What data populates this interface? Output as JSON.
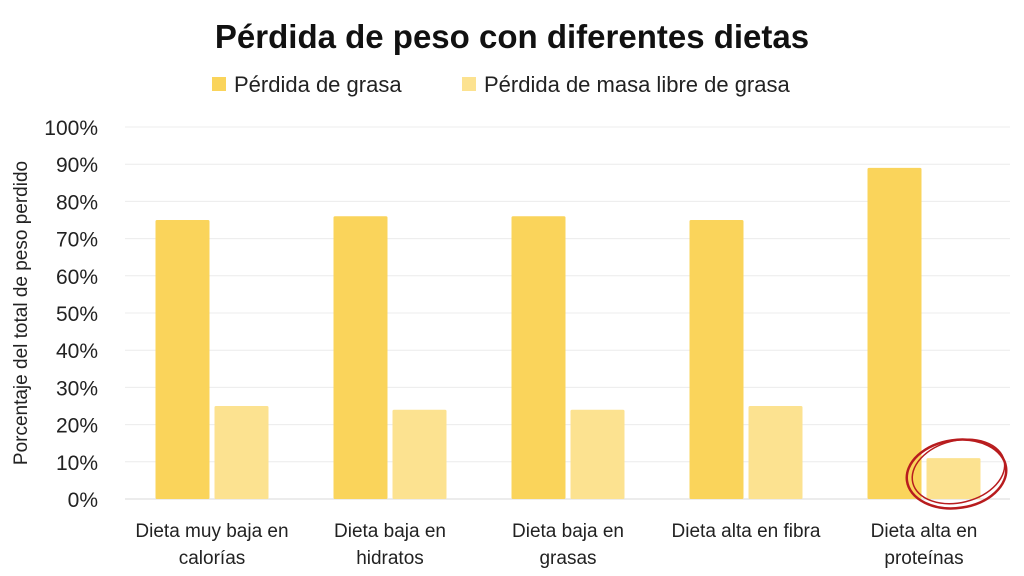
{
  "chart_data": {
    "type": "bar",
    "title": "Pérdida de peso con diferentes dietas",
    "xlabel": "",
    "ylabel": "Porcentaje del total de peso perdido",
    "ylim": [
      0,
      100
    ],
    "yticks": [
      "0%",
      "10%",
      "20%",
      "30%",
      "40%",
      "50%",
      "60%",
      "70%",
      "80%",
      "90%",
      "100%"
    ],
    "grid": true,
    "legend_position": "top",
    "categories": [
      [
        "Dieta muy baja en",
        "calorías"
      ],
      [
        "Dieta baja en",
        "hidratos"
      ],
      [
        "Dieta baja en",
        "grasas"
      ],
      [
        "Dieta alta en fibra",
        ""
      ],
      [
        "Dieta alta en",
        "proteínas"
      ]
    ],
    "series": [
      {
        "name": "Pérdida de grasa",
        "color": "#FAD45B",
        "values": [
          75,
          76,
          76,
          75,
          89
        ]
      },
      {
        "name": "Pérdida de masa libre de grasa",
        "color": "#FCE290",
        "values": [
          25,
          24,
          24,
          25,
          11
        ]
      }
    ],
    "annotation": {
      "type": "red-circle",
      "category_index": 4,
      "series_index": 1,
      "color": "#B81C1E"
    }
  }
}
